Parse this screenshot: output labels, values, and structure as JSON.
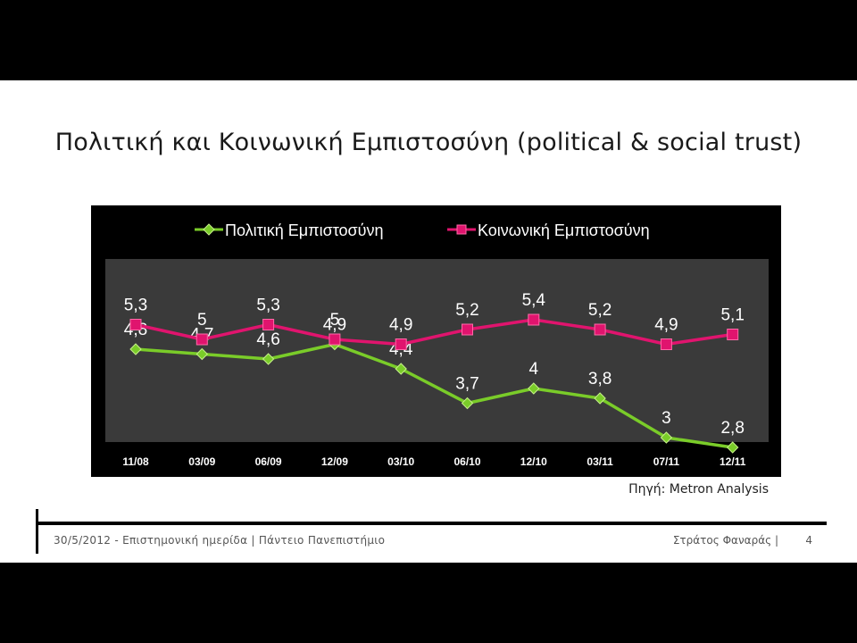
{
  "slide": {
    "title": "Πολιτική και Κοινωνική Εμπιστοσύνη (political & social trust)",
    "source": "Πηγή: Metron Analysis",
    "footer_left": "30/5/2012 - Επιστημονική ημερίδα | Πάντειο Πανεπιστήμιο",
    "footer_author": "Στράτος Φαναράς |",
    "page_number": "4"
  },
  "chart_data": {
    "type": "line",
    "categories": [
      "11/08",
      "03/09",
      "06/09",
      "12/09",
      "03/10",
      "06/10",
      "12/10",
      "03/11",
      "07/11",
      "12/11"
    ],
    "series": [
      {
        "name": "Πολιτική Εμπιστοσύνη",
        "values": [
          4.8,
          4.7,
          4.6,
          4.9,
          4.4,
          3.7,
          4,
          3.8,
          3,
          2.8
        ],
        "labels": [
          "4,8",
          "4,7",
          "4,6",
          "4,9",
          "4,4",
          "3,7",
          "4",
          "3,8",
          "3",
          "2,8"
        ],
        "color": "#7acc29",
        "marker": "diamond"
      },
      {
        "name": "Κοινωνική Εμπιστοσύνη",
        "values": [
          5.3,
          5,
          5.3,
          5,
          4.9,
          5.2,
          5.4,
          5.2,
          4.9,
          5.1
        ],
        "labels": [
          "5,3",
          "5",
          "5,3",
          "5",
          "4,9",
          "5,2",
          "5,4",
          "5,2",
          "4,9",
          "5,1"
        ],
        "color": "#e0146e",
        "marker": "square"
      }
    ],
    "legend_position": "top",
    "plot_background": "#3a3a3a",
    "chart_background": "#000000",
    "y_axis_visible": false,
    "grid": false
  }
}
